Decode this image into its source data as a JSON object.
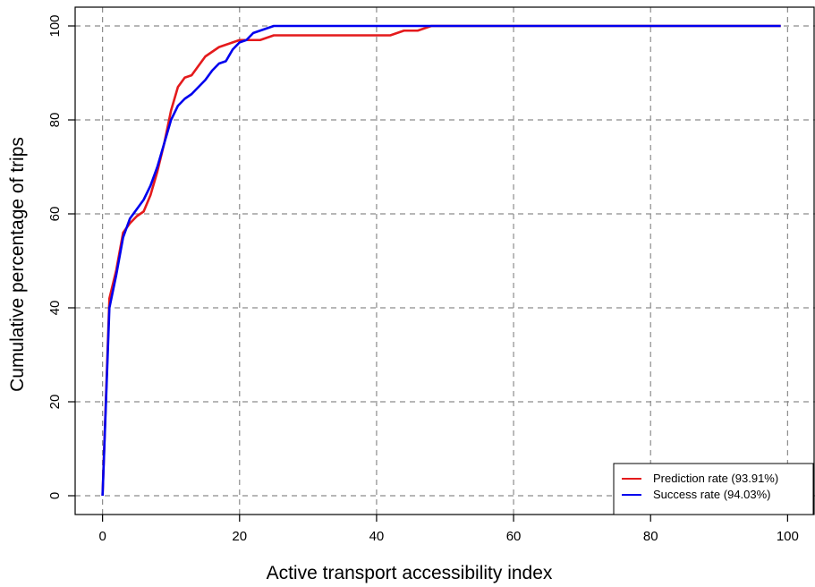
{
  "chart_data": {
    "type": "line",
    "xlabel": "Active transport accessibility index",
    "ylabel": "Cumulative percentage of trips",
    "xlim": [
      -4,
      104
    ],
    "ylim": [
      -4,
      104
    ],
    "xticks": [
      0,
      20,
      40,
      60,
      80,
      100
    ],
    "yticks": [
      0,
      20,
      40,
      60,
      80,
      100
    ],
    "grid": true,
    "legend_position": "bottom-right",
    "series": [
      {
        "name": "Prediction rate (93.91%)",
        "color": "#e41a1c",
        "x": [
          0,
          1,
          2,
          3,
          4,
          5,
          6,
          7,
          8,
          9,
          10,
          11,
          12,
          13,
          14,
          15,
          16,
          17,
          18,
          19,
          20,
          21,
          22,
          23,
          24,
          25,
          30,
          35,
          40,
          42,
          44,
          46,
          48,
          50,
          60,
          70,
          80,
          90,
          99
        ],
        "y": [
          0,
          42,
          48,
          56,
          58,
          59.5,
          60.5,
          64,
          69,
          75,
          82,
          87,
          89,
          89.5,
          91.5,
          93.5,
          94.5,
          95.5,
          96,
          96.5,
          97,
          97,
          97,
          97,
          97.5,
          98,
          98,
          98,
          98,
          98,
          99,
          99,
          100,
          100,
          100,
          100,
          100,
          100,
          100
        ]
      },
      {
        "name": "Success rate (94.03%)",
        "color": "#0000ee",
        "x": [
          0,
          1,
          2,
          3,
          4,
          5,
          6,
          7,
          8,
          9,
          10,
          11,
          12,
          13,
          14,
          15,
          16,
          17,
          18,
          19,
          20,
          21,
          22,
          23,
          24,
          25,
          30,
          40,
          50,
          60,
          70,
          80,
          90,
          99
        ],
        "y": [
          0,
          40,
          47,
          55,
          59,
          61,
          63,
          66,
          70,
          75,
          80,
          83,
          84.5,
          85.5,
          87,
          88.5,
          90.5,
          92,
          92.5,
          95,
          96.5,
          97,
          98.5,
          99,
          99.5,
          100,
          100,
          100,
          100,
          100,
          100,
          100,
          100,
          100
        ]
      }
    ]
  }
}
